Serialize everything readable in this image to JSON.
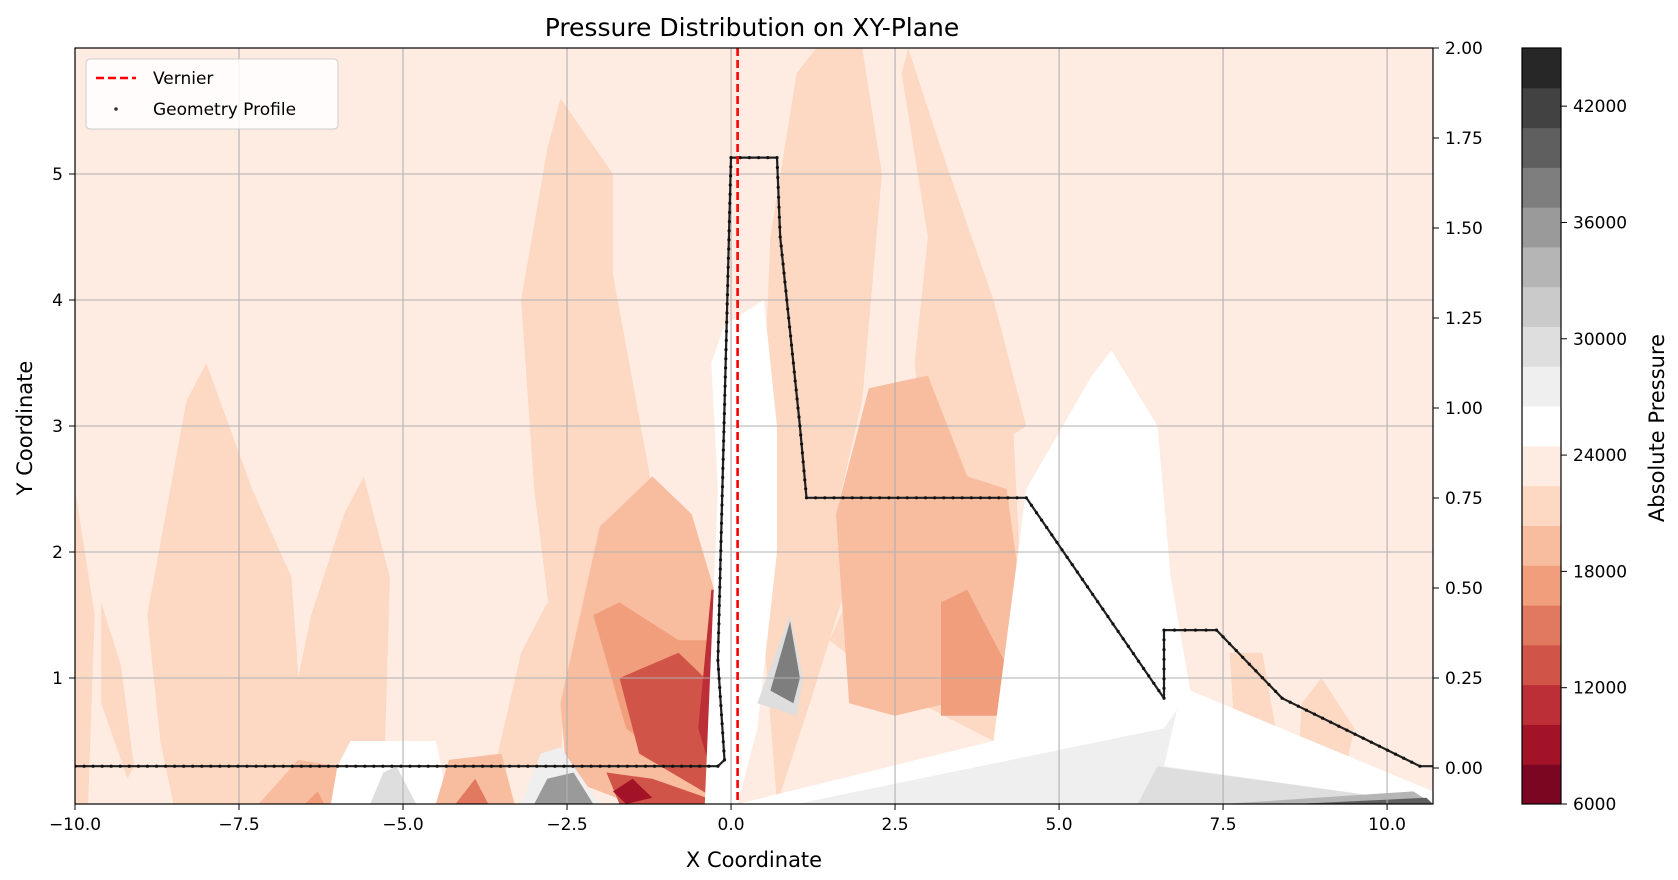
{
  "chart_data": {
    "type": "heatmap",
    "title": "Pressure Distribution on XY-Plane",
    "xlabel": "X Coordinate",
    "ylabel": "Y Coordinate",
    "xlim": [
      -10.0,
      10.7
    ],
    "ylim": [
      0.0,
      6.0
    ],
    "y2lim": [
      -0.1,
      2.0
    ],
    "x_ticks": [
      "−10.0",
      "−7.5",
      "−5.0",
      "−2.5",
      "0.0",
      "2.5",
      "5.0",
      "7.5",
      "10.0"
    ],
    "y_ticks": [
      "1",
      "2",
      "3",
      "4",
      "5"
    ],
    "y2_ticks": [
      "0.00",
      "0.25",
      "0.50",
      "0.75",
      "1.00",
      "1.25",
      "1.50",
      "1.75",
      "2.00"
    ],
    "grid": true,
    "legend_position": "top-left",
    "legend": [
      {
        "label": "Vernier",
        "marker": "dashed-line",
        "color": "#ff0000"
      },
      {
        "label": "Geometry Profile",
        "marker": "dot",
        "color": "#333333"
      }
    ],
    "vernier_x": 0.1,
    "colorbar": {
      "label": "Absolute Pressure",
      "min": 6000,
      "max": 45000,
      "tick_values": [
        6000,
        12000,
        18000,
        24000,
        30000,
        36000,
        42000
      ],
      "tick_labels": [
        "6000",
        "12000",
        "18000",
        "24000",
        "30000",
        "36000",
        "42000"
      ],
      "colormap": "RdGy",
      "levels": 19
    },
    "background_pressure": 23000,
    "pressure_regions": [
      {
        "polygon": [
          [
            -10,
            0
          ],
          [
            -9.8,
            0
          ],
          [
            -9.7,
            1.5
          ],
          [
            -10,
            2.5
          ]
        ],
        "pressure": 21800
      },
      {
        "polygon": [
          [
            -9.2,
            0.2
          ],
          [
            -9.6,
            0.8
          ],
          [
            -9.6,
            1.6
          ],
          [
            -9.3,
            1.1
          ],
          [
            -9.1,
            0.3
          ]
        ],
        "pressure": 21800
      },
      {
        "polygon": [
          [
            -8.7,
            0.5
          ],
          [
            -8.9,
            1.5
          ],
          [
            -8.3,
            3.2
          ],
          [
            -8.0,
            3.5
          ],
          [
            -7.3,
            2.5
          ],
          [
            -6.7,
            1.8
          ],
          [
            -6.5,
            0.3
          ],
          [
            -7.0,
            0.0
          ],
          [
            -8.5,
            0.0
          ]
        ],
        "pressure": 21800
      },
      {
        "polygon": [
          [
            -7.0,
            0.0
          ],
          [
            -6.4,
            1.5
          ],
          [
            -5.9,
            2.3
          ],
          [
            -5.6,
            2.6
          ],
          [
            -5.2,
            1.8
          ],
          [
            -5.3,
            0.0
          ]
        ],
        "pressure": 21800
      },
      {
        "polygon": [
          [
            -6.5,
            0.7
          ],
          [
            -6.0,
            0.95
          ],
          [
            -5.4,
            0.9
          ],
          [
            -5.7,
            0.6
          ],
          [
            -6.2,
            0.6
          ]
        ],
        "pressure": 21800
      },
      {
        "polygon": [
          [
            -3.6,
            0.3
          ],
          [
            -3.2,
            1.2
          ],
          [
            -2.8,
            1.6
          ],
          [
            -2.5,
            1.3
          ],
          [
            -2.6,
            0.3
          ]
        ],
        "pressure": 21800
      },
      {
        "polygon": [
          [
            -2.5,
            0.4
          ],
          [
            -3.0,
            2.5
          ],
          [
            -3.2,
            4.0
          ],
          [
            -2.8,
            5.2
          ],
          [
            -2.6,
            5.6
          ],
          [
            -1.8,
            5.0
          ],
          [
            -1.8,
            4.2
          ],
          [
            -1.2,
            2.5
          ],
          [
            -0.9,
            1.2
          ],
          [
            -1.5,
            0.3
          ]
        ],
        "pressure": 21800
      },
      {
        "polygon": [
          [
            -1.5,
            0.0
          ],
          [
            -2.5,
            0.2
          ],
          [
            -2.6,
            0.8
          ],
          [
            -2.0,
            2.2
          ],
          [
            -1.2,
            2.6
          ],
          [
            -0.6,
            2.3
          ],
          [
            -0.2,
            1.6
          ],
          [
            -0.1,
            0.0
          ]
        ],
        "pressure": 19800
      },
      {
        "polygon": [
          [
            -0.1,
            0.0
          ],
          [
            -1.6,
            0.6
          ],
          [
            -2.1,
            1.5
          ],
          [
            -1.7,
            1.6
          ],
          [
            -0.8,
            1.3
          ],
          [
            -0.3,
            1.3
          ],
          [
            -0.1,
            0.6
          ]
        ],
        "pressure": 17200
      },
      {
        "polygon": [
          [
            -0.1,
            0.0
          ],
          [
            -1.4,
            0.4
          ],
          [
            -1.7,
            1.0
          ],
          [
            -0.8,
            1.2
          ],
          [
            -0.2,
            0.9
          ]
        ],
        "pressure": 13800
      },
      {
        "polygon": [
          [
            -0.15,
            0.0
          ],
          [
            -0.5,
            0.6
          ],
          [
            -0.3,
            1.7
          ],
          [
            -0.05,
            1.7
          ],
          [
            0.0,
            0.3
          ]
        ],
        "pressure": 11200
      },
      {
        "polygon": [
          [
            -0.1,
            0.0
          ],
          [
            -1.2,
            0.2
          ],
          [
            -1.9,
            0.25
          ],
          [
            -1.7,
            0.0
          ]
        ],
        "pressure": 12600
      },
      {
        "polygon": [
          [
            -1.6,
            0.0
          ],
          [
            -1.8,
            0.1
          ],
          [
            -1.5,
            0.2
          ],
          [
            -1.2,
            0.05
          ]
        ],
        "pressure": 8200
      },
      {
        "polygon": [
          [
            0.7,
            0.0
          ],
          [
            0.4,
            2.0
          ],
          [
            0.6,
            4.5
          ],
          [
            1.0,
            5.8
          ],
          [
            1.3,
            6.0
          ],
          [
            2.0,
            6.0
          ],
          [
            2.3,
            5.0
          ],
          [
            2.0,
            3.2
          ],
          [
            1.6,
            2.3
          ],
          [
            1.8,
            1.8
          ],
          [
            1.2,
            0.8
          ]
        ],
        "pressure": 21800
      },
      {
        "polygon": [
          [
            1.5,
            1.3
          ],
          [
            3.3,
            3.4
          ],
          [
            4.3,
            3.0
          ],
          [
            4.5,
            0.9
          ],
          [
            4.0,
            0.5
          ],
          [
            2.5,
            0.9
          ]
        ],
        "pressure": 21800
      },
      {
        "polygon": [
          [
            2.7,
            6.0
          ],
          [
            3.2,
            5.2
          ],
          [
            4.0,
            4.0
          ],
          [
            4.5,
            3.0
          ],
          [
            3.0,
            2.5
          ],
          [
            2.8,
            3.5
          ],
          [
            3.0,
            4.5
          ],
          [
            2.6,
            5.8
          ]
        ],
        "pressure": 21800
      },
      {
        "polygon": [
          [
            1.8,
            0.8
          ],
          [
            1.6,
            2.3
          ],
          [
            2.1,
            3.3
          ],
          [
            3.0,
            3.4
          ],
          [
            3.6,
            2.6
          ],
          [
            4.2,
            2.5
          ],
          [
            4.6,
            1.0
          ],
          [
            4.4,
            0.7
          ],
          [
            3.3,
            0.8
          ],
          [
            2.5,
            0.7
          ]
        ],
        "pressure": 19800
      },
      {
        "polygon": [
          [
            3.2,
            0.7
          ],
          [
            3.2,
            1.6
          ],
          [
            3.6,
            1.7
          ],
          [
            4.2,
            1.1
          ],
          [
            4.5,
            0.8
          ],
          [
            4.3,
            0.7
          ]
        ],
        "pressure": 17200
      },
      {
        "polygon": [
          [
            4.2,
            0.8
          ],
          [
            4.1,
            0.9
          ],
          [
            4.4,
            0.8
          ]
        ],
        "pressure": 13800
      },
      {
        "polygon": [
          [
            6.0,
            0.5
          ],
          [
            6.2,
            1.5
          ],
          [
            6.9,
            0.8
          ],
          [
            7.0,
            0.3
          ]
        ],
        "pressure": 21800
      },
      {
        "polygon": [
          [
            7.7,
            0.4
          ],
          [
            7.6,
            1.2
          ],
          [
            8.1,
            1.2
          ],
          [
            8.3,
            0.6
          ]
        ],
        "pressure": 21800
      },
      {
        "polygon": [
          [
            8.6,
            0.0
          ],
          [
            8.7,
            0.8
          ],
          [
            9.0,
            1.0
          ],
          [
            9.5,
            0.6
          ],
          [
            9.3,
            0.1
          ]
        ],
        "pressure": 21800
      },
      {
        "polygon": [
          [
            -0.4,
            0.0
          ],
          [
            -0.2,
            2.5
          ],
          [
            -0.3,
            3.5
          ],
          [
            -0.1,
            3.8
          ],
          [
            0.5,
            4.0
          ],
          [
            0.7,
            3.0
          ],
          [
            0.7,
            2.0
          ],
          [
            0.4,
            0.6
          ],
          [
            0.1,
            0.0
          ]
        ],
        "pressure": 25000
      },
      {
        "polygon": [
          [
            -0.3,
            0.0
          ],
          [
            -0.1,
            3.0
          ],
          [
            0.1,
            3.8
          ],
          [
            0.4,
            3.7
          ],
          [
            0.5,
            2.0
          ],
          [
            0.3,
            0.6
          ],
          [
            0.1,
            0.0
          ]
        ],
        "pressure": 26200
      },
      {
        "polygon": [
          [
            4.0,
            0.5
          ],
          [
            4.5,
            2.5
          ],
          [
            5.5,
            3.4
          ],
          [
            5.8,
            3.6
          ],
          [
            6.5,
            3.0
          ],
          [
            6.7,
            1.8
          ],
          [
            7.0,
            0.9
          ],
          [
            10.7,
            0.1
          ],
          [
            10.7,
            0.0
          ],
          [
            0.1,
            0.0
          ]
        ],
        "pressure": 25000
      },
      {
        "polygon": [
          [
            4.9,
            0.6
          ],
          [
            5.6,
            1.4
          ],
          [
            6.3,
            1.7
          ],
          [
            6.7,
            1.4
          ],
          [
            6.9,
            0.6
          ],
          [
            6.5,
            0.3
          ],
          [
            5.5,
            0.4
          ]
        ],
        "pressure": 26200
      },
      {
        "polygon": [
          [
            1.0,
            0.0
          ],
          [
            6.6,
            0.6
          ],
          [
            6.8,
            0.75
          ],
          [
            6.6,
            0.3
          ],
          [
            10.7,
            0.0
          ]
        ],
        "pressure": 28200
      },
      {
        "polygon": [
          [
            6.2,
            0.0
          ],
          [
            6.5,
            0.3
          ],
          [
            10.7,
            0.0
          ]
        ],
        "pressure": 30200
      },
      {
        "polygon": [
          [
            7.5,
            0.0
          ],
          [
            10.7,
            0.0
          ],
          [
            10.4,
            0.1
          ]
        ],
        "pressure": 34200
      },
      {
        "polygon": [
          [
            8.6,
            0.0
          ],
          [
            10.7,
            0.0
          ],
          [
            10.6,
            0.05
          ]
        ],
        "pressure": 40200
      },
      {
        "polygon": [
          [
            -6.3,
            0.0
          ],
          [
            -5.8,
            0.5
          ],
          [
            -4.5,
            0.5
          ],
          [
            -4.3,
            0.0
          ]
        ],
        "pressure": 25000
      },
      {
        "polygon": [
          [
            -5.5,
            0.0
          ],
          [
            -5.3,
            0.25
          ],
          [
            -5.1,
            0.3
          ],
          [
            -4.8,
            0.0
          ]
        ],
        "pressure": 30200
      },
      {
        "polygon": [
          [
            -3.2,
            0.0
          ],
          [
            -2.9,
            0.4
          ],
          [
            -2.6,
            0.45
          ],
          [
            -2.0,
            0.0
          ]
        ],
        "pressure": 28200
      },
      {
        "polygon": [
          [
            -3.0,
            0.0
          ],
          [
            -2.8,
            0.2
          ],
          [
            -2.4,
            0.25
          ],
          [
            -2.1,
            0.0
          ]
        ],
        "pressure": 36200
      },
      {
        "polygon": [
          [
            -4.5,
            0.0
          ],
          [
            -4.3,
            0.35
          ],
          [
            -3.5,
            0.4
          ],
          [
            -3.3,
            0.0
          ]
        ],
        "pressure": 19800
      },
      {
        "polygon": [
          [
            -4.2,
            0.0
          ],
          [
            -3.9,
            0.2
          ],
          [
            -3.7,
            0.0
          ]
        ],
        "pressure": 15800
      },
      {
        "polygon": [
          [
            -7.2,
            0.0
          ],
          [
            -6.6,
            0.35
          ],
          [
            -6.0,
            0.3
          ],
          [
            -6.1,
            0.0
          ]
        ],
        "pressure": 19800
      },
      {
        "polygon": [
          [
            -6.5,
            0.0
          ],
          [
            -6.3,
            0.1
          ],
          [
            -6.2,
            0.0
          ]
        ],
        "pressure": 17200
      },
      {
        "polygon": [
          [
            0.4,
            0.8
          ],
          [
            0.9,
            1.5
          ],
          [
            1.1,
            1.0
          ],
          [
            1.0,
            0.7
          ]
        ],
        "pressure": 30200
      },
      {
        "polygon": [
          [
            0.6,
            0.9
          ],
          [
            0.9,
            1.45
          ],
          [
            1.05,
            1.0
          ],
          [
            0.95,
            0.8
          ]
        ],
        "pressure": 38200
      }
    ],
    "geometry_profile": [
      {
        "x": -10.0,
        "y": 0.3
      },
      {
        "x": -0.2,
        "y": 0.3
      },
      {
        "x": -0.1,
        "y": 0.35
      },
      {
        "x": -0.2,
        "y": 1.14
      },
      {
        "x": 0.0,
        "y": 5.13
      },
      {
        "x": 0.7,
        "y": 5.13
      },
      {
        "x": 0.75,
        "y": 4.5
      },
      {
        "x": 0.85,
        "y": 4.0
      },
      {
        "x": 0.95,
        "y": 3.5
      },
      {
        "x": 1.05,
        "y": 3.0
      },
      {
        "x": 1.15,
        "y": 2.43
      },
      {
        "x": 4.5,
        "y": 2.43
      },
      {
        "x": 6.6,
        "y": 0.84
      },
      {
        "x": 6.6,
        "y": 1.38
      },
      {
        "x": 7.4,
        "y": 1.38
      },
      {
        "x": 8.4,
        "y": 0.84
      },
      {
        "x": 10.5,
        "y": 0.3
      },
      {
        "x": 10.7,
        "y": 0.3
      }
    ]
  }
}
